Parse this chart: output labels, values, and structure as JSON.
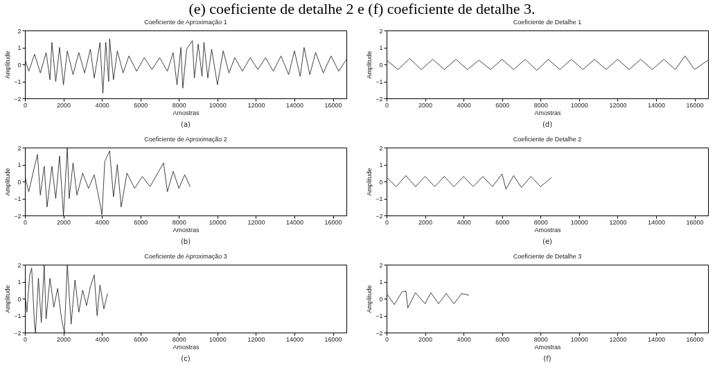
{
  "chart_data": [
    {
      "type": "line",
      "title": "Coeficiente de Aproximação 1",
      "xlabel": "Amostras",
      "ylabel": "Amplitude",
      "color": "#111111",
      "xlim": [
        0,
        16700
      ],
      "xticks": [
        0,
        2000,
        4000,
        6000,
        8000,
        10000,
        12000,
        14000,
        16000
      ],
      "ylim": [
        -2,
        2
      ],
      "yticks": [
        -2,
        -1,
        0,
        1,
        2
      ],
      "annotations": [
        "(e) coeficiente de detalhe 2 e (f) coeficiente de detalhe 3.",
        "(a)"
      ],
      "x": [
        0,
        200,
        500,
        800,
        1100,
        1300,
        1400,
        1600,
        1800,
        2000,
        2200,
        2500,
        2800,
        3100,
        3400,
        3600,
        3900,
        4050,
        4200,
        4350,
        4400,
        4600,
        4800,
        5100,
        5400,
        5800,
        6200,
        6600,
        7000,
        7400,
        7700,
        7900,
        8100,
        8200,
        8400,
        8700,
        8800,
        9000,
        9200,
        9300,
        9500,
        9700,
        10000,
        10300,
        10600,
        10900,
        11300,
        11700,
        12100,
        12500,
        12900,
        13300,
        13700,
        14000,
        14300,
        14500,
        14800,
        15100,
        15500,
        15900,
        16300,
        16700
      ],
      "values": [
        0.3,
        -0.4,
        0.6,
        -0.5,
        0.7,
        -0.9,
        1.3,
        -1.0,
        1.0,
        -1.2,
        0.8,
        -0.6,
        0.7,
        -0.5,
        0.9,
        -0.8,
        1.3,
        -1.7,
        1.3,
        -1.0,
        1.5,
        -0.9,
        0.8,
        -0.5,
        0.5,
        -0.4,
        0.4,
        -0.3,
        0.4,
        -0.4,
        0.7,
        -1.2,
        1.0,
        -1.4,
        0.9,
        1.4,
        -0.8,
        1.2,
        -0.7,
        1.3,
        -0.8,
        0.9,
        -1.2,
        0.8,
        -0.5,
        0.4,
        -0.4,
        0.4,
        -0.3,
        0.4,
        -0.4,
        0.5,
        -0.6,
        0.8,
        -0.7,
        1.0,
        -0.6,
        0.7,
        -0.5,
        0.5,
        -0.4,
        0.3
      ]
    },
    {
      "type": "line",
      "title": "Coeficiente de Detalhe 1",
      "xlabel": "Amostras",
      "ylabel": "Amplitude",
      "color": "#111111",
      "xlim": [
        0,
        16700
      ],
      "xticks": [
        0,
        2000,
        4000,
        6000,
        8000,
        10000,
        12000,
        14000,
        16000
      ],
      "ylim": [
        -2,
        2
      ],
      "yticks": [
        -2,
        -1,
        0,
        1,
        2
      ],
      "annotations": [
        "(d)"
      ],
      "x": [
        0,
        600,
        1200,
        1800,
        2400,
        3000,
        3600,
        4200,
        4800,
        5400,
        6000,
        6600,
        7200,
        7800,
        8400,
        9000,
        9600,
        10200,
        10800,
        11400,
        12000,
        12600,
        13200,
        13800,
        14400,
        15000,
        15500,
        16000,
        16700
      ],
      "values": [
        0.25,
        -0.3,
        0.35,
        -0.3,
        0.3,
        -0.3,
        0.3,
        -0.3,
        0.25,
        -0.3,
        0.3,
        -0.3,
        0.3,
        -0.35,
        0.3,
        -0.3,
        0.3,
        -0.3,
        0.3,
        -0.3,
        0.3,
        -0.3,
        0.3,
        -0.3,
        0.3,
        -0.3,
        0.5,
        -0.3,
        0.25
      ]
    },
    {
      "type": "line",
      "title": "Coeficiente de Aproximação 2",
      "xlabel": "Amostras",
      "ylabel": "Amplitude",
      "color": "#111111",
      "xlim": [
        0,
        16700
      ],
      "xticks": [
        0,
        2000,
        4000,
        6000,
        8000,
        10000,
        12000,
        14000,
        16000
      ],
      "ylim": [
        -2,
        2
      ],
      "yticks": [
        -2,
        -1,
        0,
        1,
        2
      ],
      "annotations": [
        "(b)"
      ],
      "x": [
        0,
        200,
        500,
        650,
        800,
        1000,
        1150,
        1400,
        1600,
        1800,
        2000,
        2200,
        2300,
        2500,
        2700,
        3000,
        3300,
        3600,
        3900,
        4000,
        4150,
        4400,
        4600,
        4800,
        5000,
        5300,
        5700,
        6100,
        6500,
        6900,
        7200,
        7400,
        7700,
        8000,
        8300,
        8580
      ],
      "values": [
        0.3,
        -0.6,
        0.9,
        1.6,
        -0.8,
        0.9,
        -1.5,
        0.9,
        -1.0,
        1.5,
        -2.0,
        2.0,
        -1.0,
        1.1,
        -0.8,
        0.5,
        -0.4,
        0.4,
        -1.3,
        -1.95,
        1.2,
        1.8,
        -0.9,
        1.0,
        -1.5,
        0.5,
        -0.4,
        0.3,
        -0.3,
        0.5,
        1.1,
        -0.6,
        0.6,
        -0.4,
        0.4,
        -0.3
      ]
    },
    {
      "type": "line",
      "title": "Coeficiente de Detalhe 2",
      "xlabel": "Amostras",
      "ylabel": "Amplitude",
      "color": "#111111",
      "xlim": [
        0,
        16700
      ],
      "xticks": [
        0,
        2000,
        4000,
        6000,
        8000,
        10000,
        12000,
        14000,
        16000
      ],
      "ylim": [
        -2,
        2
      ],
      "yticks": [
        -2,
        -1,
        0,
        1,
        2
      ],
      "annotations": [
        "(e)"
      ],
      "x": [
        0,
        500,
        1000,
        1500,
        2000,
        2500,
        3000,
        3500,
        4000,
        4500,
        5000,
        5500,
        6000,
        6200,
        6600,
        7000,
        7500,
        8000,
        8580
      ],
      "values": [
        0.25,
        -0.3,
        0.35,
        -0.3,
        0.3,
        -0.3,
        0.3,
        -0.3,
        0.3,
        -0.3,
        0.3,
        -0.3,
        0.45,
        -0.45,
        0.35,
        -0.35,
        0.3,
        -0.3,
        0.25
      ]
    },
    {
      "type": "line",
      "title": "Coeficiente de Aproximação 3",
      "xlabel": "Amostras",
      "ylabel": "Amplitude",
      "color": "#111111",
      "xlim": [
        0,
        16700
      ],
      "xticks": [
        0,
        2000,
        4000,
        6000,
        8000,
        10000,
        12000,
        14000,
        16000
      ],
      "ylim": [
        -2,
        2
      ],
      "yticks": [
        -2,
        -1,
        0,
        1,
        2
      ],
      "annotations": [
        "(c)"
      ],
      "x": [
        0,
        100,
        250,
        350,
        500,
        550,
        700,
        850,
        1000,
        1100,
        1300,
        1500,
        1700,
        1900,
        2050,
        2200,
        2400,
        2600,
        2800,
        3000,
        3200,
        3400,
        3600,
        3750,
        3900,
        4100,
        4290
      ],
      "values": [
        0.3,
        -0.8,
        1.4,
        1.8,
        -1.6,
        -2.0,
        1.2,
        -1.4,
        2.0,
        -1.2,
        1.2,
        -0.5,
        0.6,
        -1.2,
        -2.0,
        2.0,
        -1.5,
        1.1,
        -0.8,
        0.5,
        -0.4,
        0.7,
        1.4,
        -1.0,
        0.8,
        -0.6,
        0.3
      ]
    },
    {
      "type": "line",
      "title": "Coeficiente de Detalhe 3",
      "xlabel": "Amostras",
      "ylabel": "Amplitude",
      "color": "#111111",
      "xlim": [
        0,
        16700
      ],
      "xticks": [
        0,
        2000,
        4000,
        6000,
        8000,
        10000,
        12000,
        14000,
        16000
      ],
      "ylim": [
        -2,
        2
      ],
      "yticks": [
        -2,
        -1,
        0,
        1,
        2
      ],
      "annotations": [
        "(f)"
      ],
      "x": [
        0,
        400,
        800,
        1000,
        1100,
        1500,
        2000,
        2300,
        2700,
        3100,
        3500,
        3900,
        4290
      ],
      "values": [
        0.3,
        -0.35,
        0.4,
        0.45,
        -0.55,
        0.35,
        -0.3,
        0.35,
        -0.3,
        0.3,
        -0.3,
        0.3,
        0.2
      ]
    }
  ]
}
